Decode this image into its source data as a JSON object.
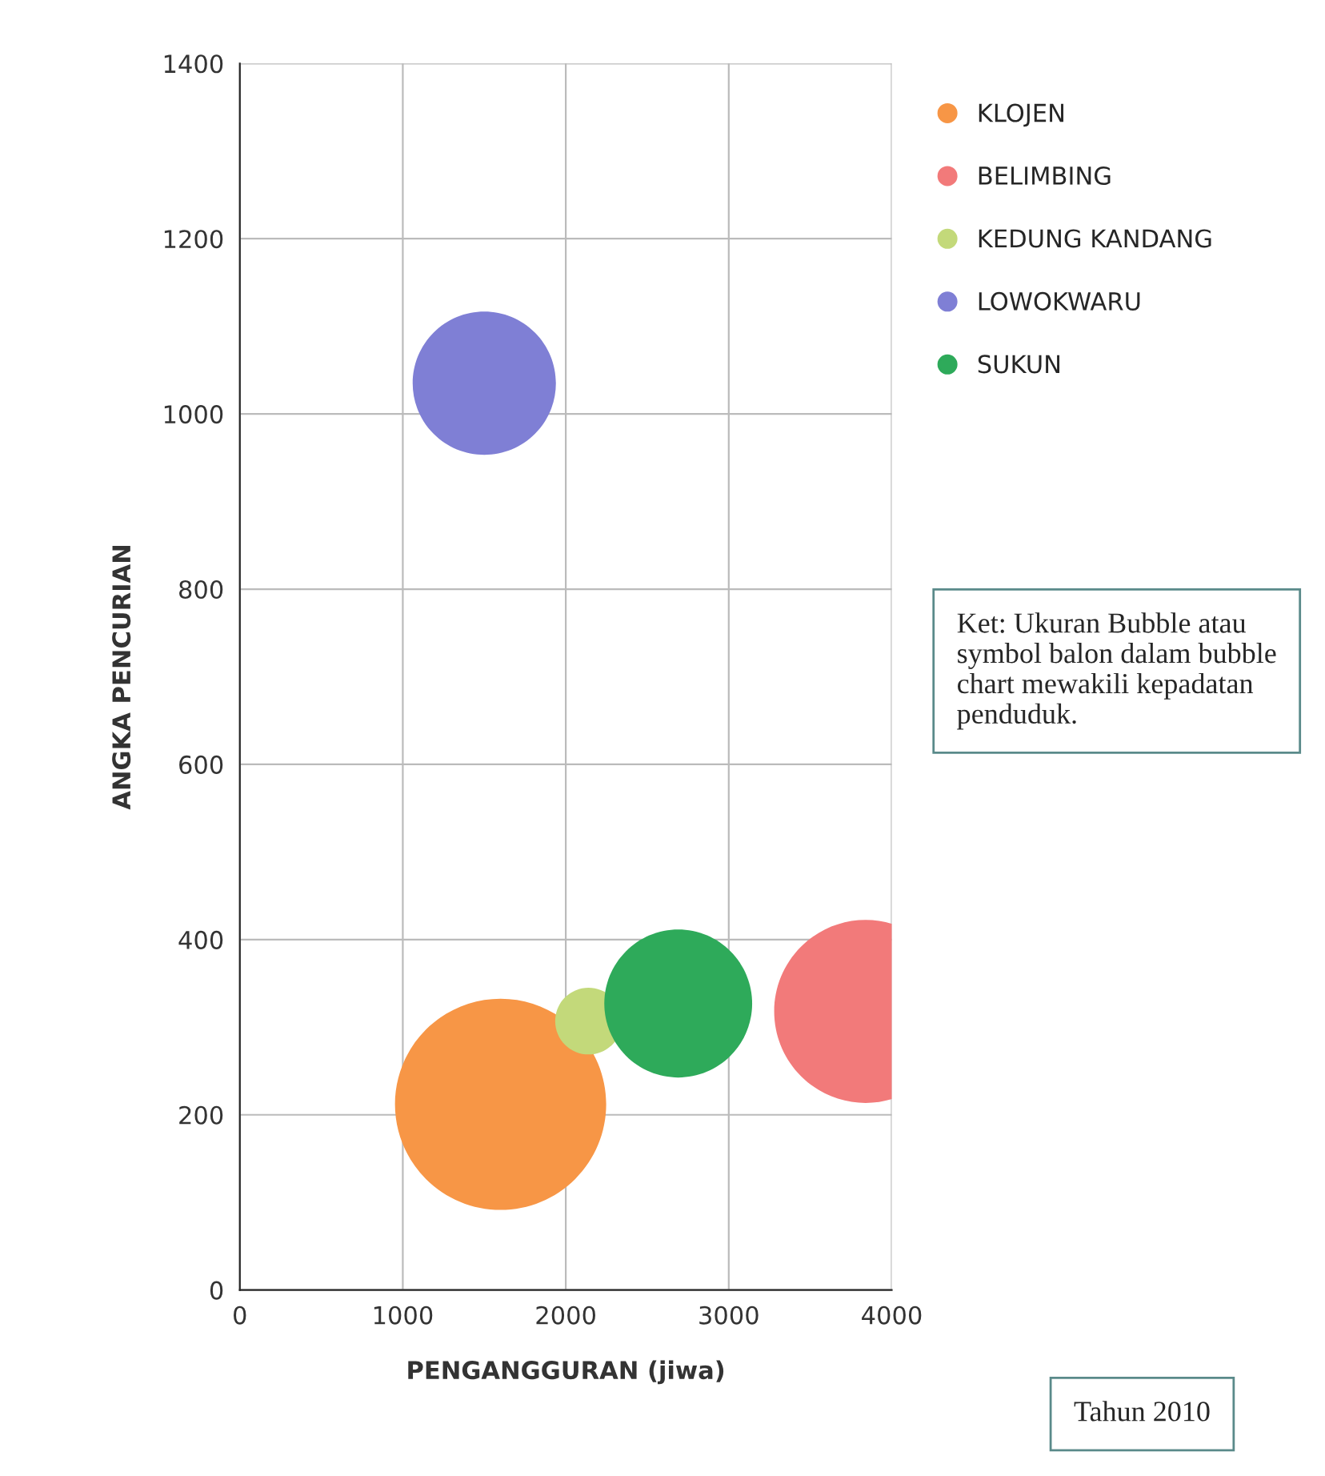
{
  "chart_data": {
    "type": "bubble",
    "xlabel": "PENGANGGURAN (jiwa)",
    "ylabel": "ANGKA PENCURIAN",
    "xlim": [
      0,
      4000
    ],
    "xticks": [
      0,
      1000,
      2000,
      3000,
      4000
    ],
    "ylim": [
      0,
      1400
    ],
    "yticks": [
      0,
      200,
      400,
      600,
      800,
      1000,
      1200,
      1400
    ],
    "grid": true,
    "legend": "top right",
    "series": [
      {
        "name": "KLOJEN",
        "color": "#f79646",
        "x": [
          1600
        ],
        "values": [
          212
        ],
        "sizes": [
          1
        ]
      },
      {
        "name": "BELIMBING",
        "color": "#f27a7a",
        "x": [
          3840
        ],
        "values": [
          318
        ],
        "sizes": [
          0.75
        ]
      },
      {
        "name": "KEDUNG KANDANG",
        "color": "#c3d97a",
        "x": [
          2140
        ],
        "values": [
          307
        ],
        "sizes": [
          0.1
        ]
      },
      {
        "name": "LOWOKWARU",
        "color": "#7f7fd5",
        "x": [
          1500
        ],
        "values": [
          1035
        ],
        "sizes": [
          0.46
        ]
      },
      {
        "name": "SUKUN",
        "color": "#2eaa5a",
        "x": [
          2690
        ],
        "values": [
          327
        ],
        "sizes": [
          0.49
        ]
      }
    ],
    "annotations": [
      "Ket: Ukuran Bubble atau symbol balon dalam bubble chart mewakili kepadatan penduduk.",
      "Tahun 2010"
    ]
  }
}
